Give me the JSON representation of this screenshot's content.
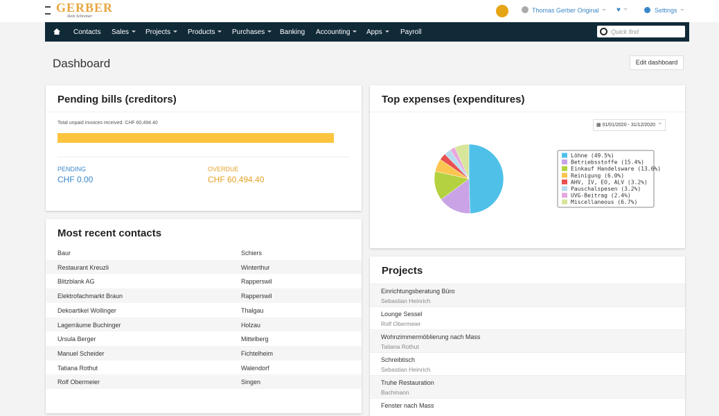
{
  "header": {
    "logo_text": "GERBER",
    "logo_sub": "Dein Schreiner",
    "user": "Thomas Gerber Original",
    "settings": "Settings"
  },
  "nav": {
    "items": [
      "Contacts",
      "Sales",
      "Projects",
      "Products",
      "Purchases",
      "Banking",
      "Accounting",
      "Apps",
      "Payroll"
    ],
    "search_placeholder": "Quick find"
  },
  "page": {
    "title": "Dashboard",
    "edit_button": "Edit dashboard"
  },
  "pending": {
    "title": "Pending bills (creditors)",
    "total_label": "Total unpaid invoices received: CHF 60,494.40",
    "pending_label": "PENDING",
    "pending_value": "CHF 0.00",
    "overdue_label": "OVERDUE",
    "overdue_value": "CHF 60,494.40"
  },
  "contacts": {
    "title": "Most recent contacts",
    "rows": [
      [
        "Baur",
        "Schiers"
      ],
      [
        "Restaurant Kreuzli",
        "Winterthur"
      ],
      [
        "Blitzblank AG",
        "Rapperswil"
      ],
      [
        "Elektrofachmarkt Braun",
        "Rapperswil"
      ],
      [
        "Dekoartikel Wollinger",
        "Thalgau"
      ],
      [
        "Lagerräume Buchinger",
        "Holzau"
      ],
      [
        "Ursula Berger",
        "Mittelberg"
      ],
      [
        "Manuel Scheider",
        "Fichtelheim"
      ],
      [
        "Tatiana Rothut",
        "Walendorf"
      ],
      [
        "Rolf Obermeier",
        "Singen"
      ]
    ]
  },
  "expenses": {
    "title": "Top expenses (expenditures)",
    "date_range": "01/01/2020 - 31/12/2020"
  },
  "chart_data": {
    "type": "pie",
    "categories": [
      "Löhne (49.5%)",
      "Betriebsstoffe (15.4%)",
      "Einkauf Handelsware (13.6%)",
      "Reinigung (6.0%)",
      "AHV, IV, EO, ALV (3.2%)",
      "Pauschalspesen (3.2%)",
      "UVG-Beitrag (2.4%)",
      "Miscellaneous (6.7%)"
    ],
    "values": [
      49.5,
      15.4,
      13.6,
      6.0,
      3.2,
      3.2,
      2.4,
      6.7
    ],
    "colors": [
      "#4fc1e9",
      "#c9a3e6",
      "#b4d13f",
      "#fcc54f",
      "#e9504f",
      "#b8dcef",
      "#e6a8dc",
      "#d8e69b"
    ]
  },
  "projects": {
    "title": "Projects",
    "rows": [
      [
        "Einrichtungsberatung Büro",
        "Sebastian Heinrich"
      ],
      [
        "Lounge Sessel",
        "Rolf Obermeier"
      ],
      [
        "Wohnzimmermöblierung nach Mass",
        "Tatiana Rothut"
      ],
      [
        "Schreibtisch",
        "Sebastian Heinrich"
      ],
      [
        "Truhe Restauration",
        "Bachmann"
      ],
      [
        "Fenster nach Mass",
        null
      ]
    ]
  }
}
